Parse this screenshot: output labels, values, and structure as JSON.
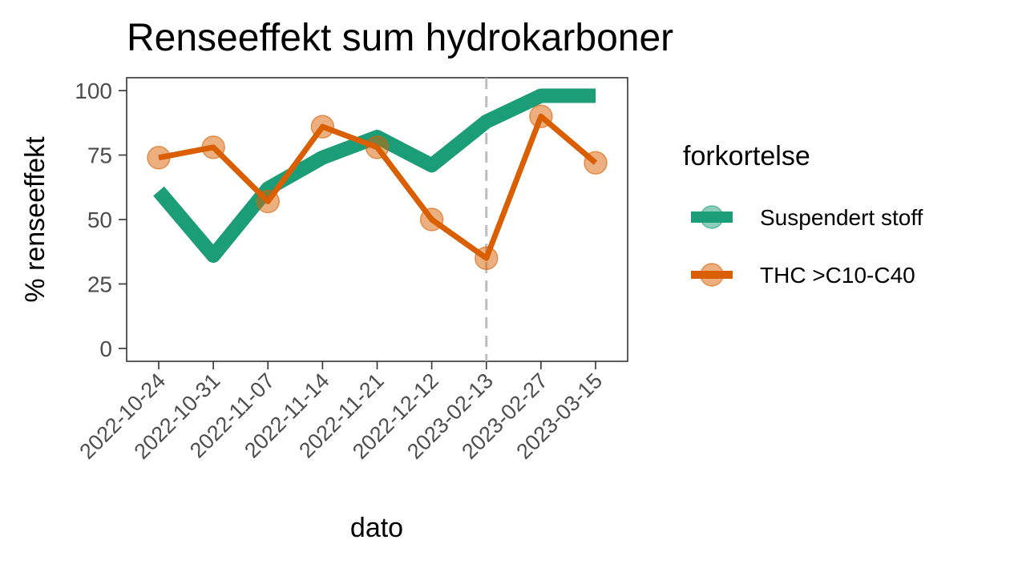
{
  "chart_data": {
    "type": "line",
    "title": "Renseeffekt sum hydrokarboner",
    "xlabel": "dato",
    "ylabel": "% renseeffekt",
    "categories": [
      "2022-10-24",
      "2022-10-31",
      "2022-11-07",
      "2022-11-14",
      "2022-11-21",
      "2022-12-12",
      "2023-02-13",
      "2023-02-27",
      "2023-03-15"
    ],
    "ylim": [
      -5,
      105
    ],
    "yticks": [
      0,
      25,
      50,
      75,
      100
    ],
    "grid": false,
    "vline": {
      "x": "2023-02-13",
      "style": "dashed",
      "color": "#bdbdbd"
    },
    "legend": {
      "title": "forkortelse",
      "position": "right"
    },
    "series": [
      {
        "name": "Suspendert stoff",
        "color": "#1b9e77",
        "points": false,
        "values": [
          61,
          36,
          62,
          74,
          82,
          71,
          88,
          98,
          98
        ]
      },
      {
        "name": "THC >C10-C40",
        "color": "#d95f02",
        "points": true,
        "values": [
          74,
          78,
          57,
          86,
          78,
          50,
          35,
          90,
          72
        ]
      }
    ]
  }
}
